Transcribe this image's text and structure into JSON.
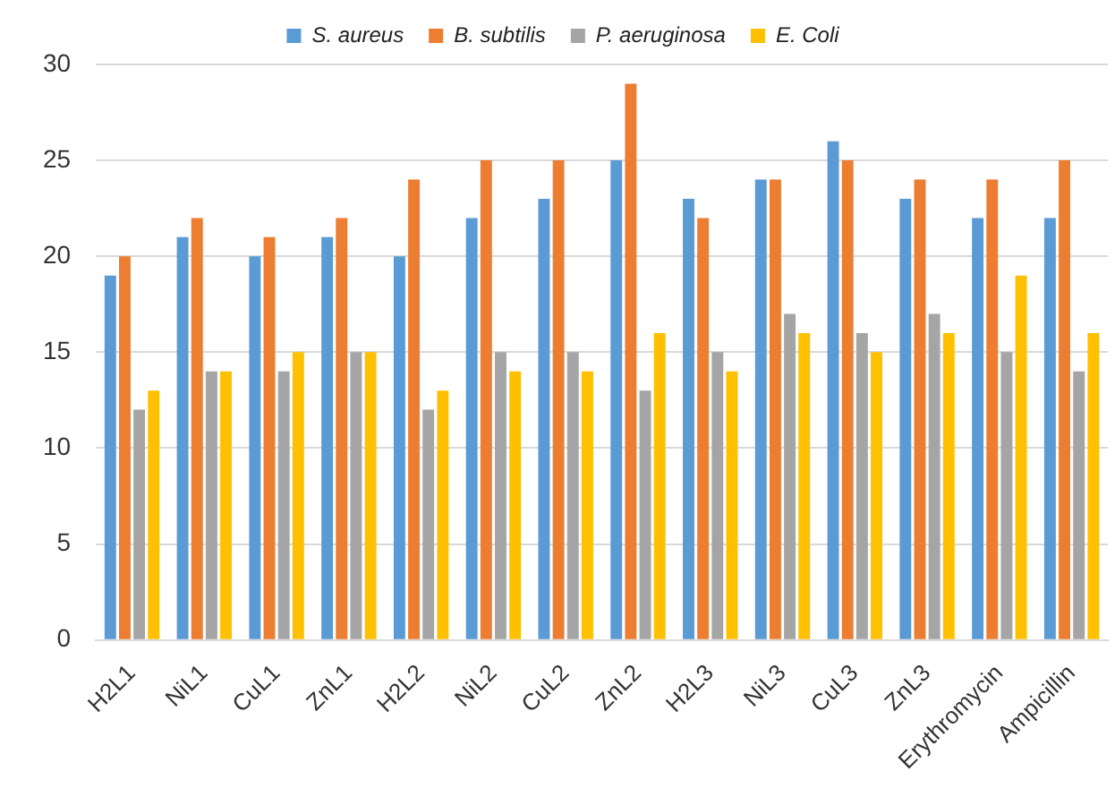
{
  "chart_data": {
    "type": "bar",
    "categories": [
      "H2L1",
      "NiL1",
      "CuL1",
      "ZnL1",
      "H2L2",
      "NiL2",
      "CuL2",
      "ZnL2",
      "H2L3",
      "NiL3",
      "CuL3",
      "ZnL3",
      "Erythromycin",
      "Ampicillin"
    ],
    "series": [
      {
        "name": "S. aureus",
        "color": "#5b9bd5",
        "values": [
          19,
          21,
          20,
          21,
          20,
          22,
          23,
          25,
          23,
          24,
          26,
          23,
          22,
          22
        ]
      },
      {
        "name": "B. subtilis",
        "color": "#ed7d31",
        "values": [
          20,
          22,
          21,
          22,
          24,
          25,
          25,
          29,
          22,
          24,
          25,
          24,
          24,
          25
        ]
      },
      {
        "name": "P. aeruginosa",
        "color": "#a5a5a5",
        "values": [
          12,
          14,
          14,
          15,
          12,
          15,
          15,
          13,
          15,
          17,
          16,
          17,
          15,
          14
        ]
      },
      {
        "name": "E. Coli",
        "color": "#ffc000",
        "values": [
          13,
          14,
          15,
          15,
          13,
          14,
          14,
          16,
          14,
          16,
          15,
          16,
          19,
          16
        ]
      }
    ],
    "ylim": [
      0,
      30
    ],
    "yticks": [
      0,
      5,
      10,
      15,
      20,
      25,
      30
    ],
    "grid": "y",
    "legend": "top"
  }
}
